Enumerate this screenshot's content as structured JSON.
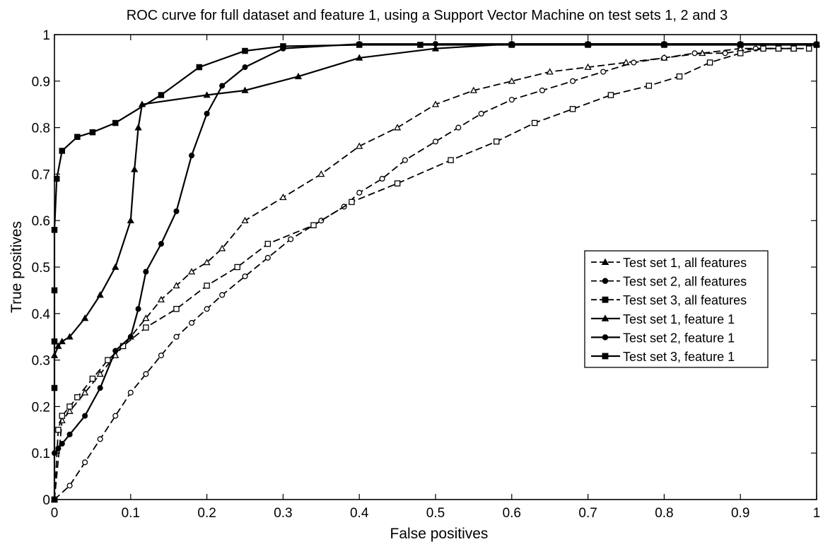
{
  "chart_data": {
    "type": "line",
    "title": "ROC curve for full dataset and feature 1, using a Support Vector Machine on test sets 1, 2 and 3",
    "xlabel": "False positives",
    "ylabel": "True positives",
    "xlim": [
      0,
      1
    ],
    "ylim": [
      0,
      1
    ],
    "xticks": [
      "0",
      "0.1",
      "0.2",
      "0.3",
      "0.4",
      "0.5",
      "0.6",
      "0.7",
      "0.8",
      "0.9",
      "1"
    ],
    "yticks": [
      "0",
      "0.1",
      "0.2",
      "0.3",
      "0.4",
      "0.5",
      "0.6",
      "0.7",
      "0.8",
      "0.9",
      "1"
    ],
    "grid": false,
    "legend_position": "right",
    "series": [
      {
        "name": "Test set 1, all features",
        "marker": "triangle",
        "line": "dashed",
        "filled": false,
        "x": [
          0,
          0.01,
          0.02,
          0.04,
          0.06,
          0.08,
          0.1,
          0.12,
          0.14,
          0.16,
          0.18,
          0.2,
          0.22,
          0.25,
          0.3,
          0.35,
          0.4,
          0.45,
          0.5,
          0.55,
          0.6,
          0.65,
          0.7,
          0.75,
          0.8,
          0.85,
          0.9,
          0.95,
          0.97
        ],
        "y": [
          0,
          0.17,
          0.19,
          0.23,
          0.27,
          0.31,
          0.35,
          0.39,
          0.43,
          0.46,
          0.49,
          0.51,
          0.54,
          0.6,
          0.65,
          0.7,
          0.76,
          0.8,
          0.85,
          0.88,
          0.9,
          0.92,
          0.93,
          0.94,
          0.95,
          0.96,
          0.97,
          0.97,
          0.97
        ]
      },
      {
        "name": "Test set 2, all features",
        "marker": "circle",
        "line": "dashed",
        "filled": false,
        "x": [
          0,
          0.02,
          0.04,
          0.06,
          0.08,
          0.1,
          0.12,
          0.14,
          0.16,
          0.18,
          0.2,
          0.22,
          0.25,
          0.28,
          0.31,
          0.35,
          0.38,
          0.4,
          0.43,
          0.46,
          0.5,
          0.53,
          0.56,
          0.6,
          0.64,
          0.68,
          0.72,
          0.76,
          0.8,
          0.84,
          0.88,
          0.92,
          0.95,
          0.97
        ],
        "y": [
          0,
          0.03,
          0.08,
          0.13,
          0.18,
          0.23,
          0.27,
          0.31,
          0.35,
          0.38,
          0.41,
          0.44,
          0.48,
          0.52,
          0.56,
          0.6,
          0.63,
          0.66,
          0.69,
          0.73,
          0.77,
          0.8,
          0.83,
          0.86,
          0.88,
          0.9,
          0.92,
          0.94,
          0.95,
          0.96,
          0.96,
          0.97,
          0.97,
          0.97
        ]
      },
      {
        "name": "Test set 3, all features",
        "marker": "square",
        "line": "dashed",
        "filled": false,
        "x": [
          0,
          0.005,
          0.01,
          0.02,
          0.03,
          0.05,
          0.07,
          0.09,
          0.12,
          0.16,
          0.2,
          0.24,
          0.28,
          0.34,
          0.39,
          0.45,
          0.52,
          0.58,
          0.63,
          0.68,
          0.73,
          0.78,
          0.82,
          0.86,
          0.9,
          0.93,
          0.95,
          0.97,
          0.99
        ],
        "y": [
          0,
          0.15,
          0.18,
          0.2,
          0.22,
          0.26,
          0.3,
          0.33,
          0.37,
          0.41,
          0.46,
          0.5,
          0.55,
          0.59,
          0.64,
          0.68,
          0.73,
          0.77,
          0.81,
          0.84,
          0.87,
          0.89,
          0.91,
          0.94,
          0.96,
          0.97,
          0.97,
          0.97,
          0.97
        ]
      },
      {
        "name": "Test set 1, feature 1",
        "marker": "triangle",
        "line": "solid",
        "filled": true,
        "x": [
          0,
          0.005,
          0.01,
          0.02,
          0.04,
          0.06,
          0.08,
          0.1,
          0.105,
          0.11,
          0.115,
          0.2,
          0.25,
          0.32,
          0.4,
          0.5,
          0.6,
          0.7,
          0.8,
          0.9,
          1.0
        ],
        "y": [
          0.31,
          0.33,
          0.34,
          0.35,
          0.39,
          0.44,
          0.5,
          0.6,
          0.71,
          0.8,
          0.85,
          0.87,
          0.88,
          0.91,
          0.95,
          0.97,
          0.98,
          0.98,
          0.98,
          0.98,
          0.98
        ]
      },
      {
        "name": "Test set 2, feature 1",
        "marker": "circle",
        "line": "solid",
        "filled": true,
        "x": [
          0,
          0.005,
          0.01,
          0.02,
          0.04,
          0.06,
          0.08,
          0.1,
          0.11,
          0.12,
          0.14,
          0.16,
          0.18,
          0.2,
          0.22,
          0.25,
          0.3,
          0.4,
          0.5,
          0.6,
          0.7,
          0.8,
          0.9,
          1.0
        ],
        "y": [
          0.1,
          0.11,
          0.12,
          0.14,
          0.18,
          0.24,
          0.32,
          0.35,
          0.41,
          0.49,
          0.55,
          0.62,
          0.74,
          0.83,
          0.89,
          0.93,
          0.97,
          0.98,
          0.98,
          0.98,
          0.98,
          0.98,
          0.98,
          0.98
        ]
      },
      {
        "name": "Test set 3, feature 1",
        "marker": "square",
        "line": "solid",
        "filled": true,
        "x": [
          0,
          0,
          0,
          0,
          0,
          0.003,
          0.01,
          0.03,
          0.05,
          0.08,
          0.14,
          0.19,
          0.25,
          0.3,
          0.4,
          0.48,
          0.6,
          0.7,
          0.8,
          0.9,
          1.0
        ],
        "y": [
          0,
          0.24,
          0.34,
          0.45,
          0.58,
          0.69,
          0.75,
          0.78,
          0.79,
          0.81,
          0.87,
          0.93,
          0.965,
          0.975,
          0.978,
          0.978,
          0.978,
          0.978,
          0.978,
          0.978,
          0.978
        ]
      }
    ]
  }
}
